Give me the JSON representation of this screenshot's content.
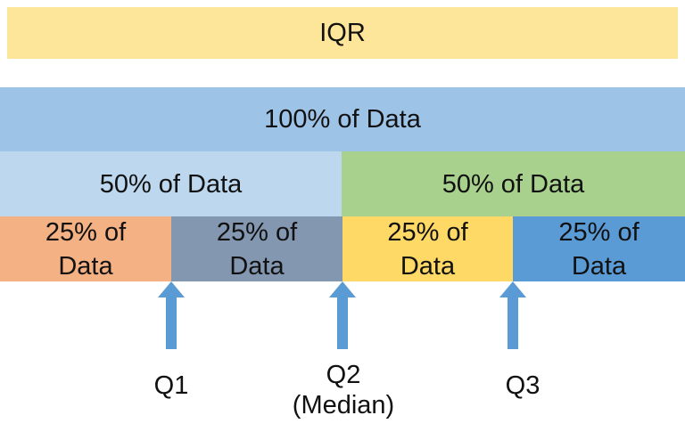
{
  "iqr_label": "IQR",
  "full_label": "100% of Data",
  "halves": [
    {
      "label": "50% of Data",
      "color": "#bdd7ee"
    },
    {
      "label": "50% of Data",
      "color": "#a9d18e"
    }
  ],
  "quarters": [
    {
      "line1": "25% of",
      "line2": "Data",
      "color": "#f4b183"
    },
    {
      "line1": "25% of",
      "line2": "Data",
      "color": "#8497b0"
    },
    {
      "line1": "25% of",
      "line2": "Data",
      "color": "#ffd966"
    },
    {
      "line1": "25% of",
      "line2": "Data",
      "color": "#5b9bd5"
    }
  ],
  "markers": {
    "q1": "Q1",
    "q2": "Q2",
    "q2_sub": "(Median)",
    "q3": "Q3",
    "arrow_color": "#5b9bd5",
    "arrow_icon": "arrow-up-icon"
  },
  "colors": {
    "iqr": "#fde59a",
    "full": "#9dc3e6"
  }
}
